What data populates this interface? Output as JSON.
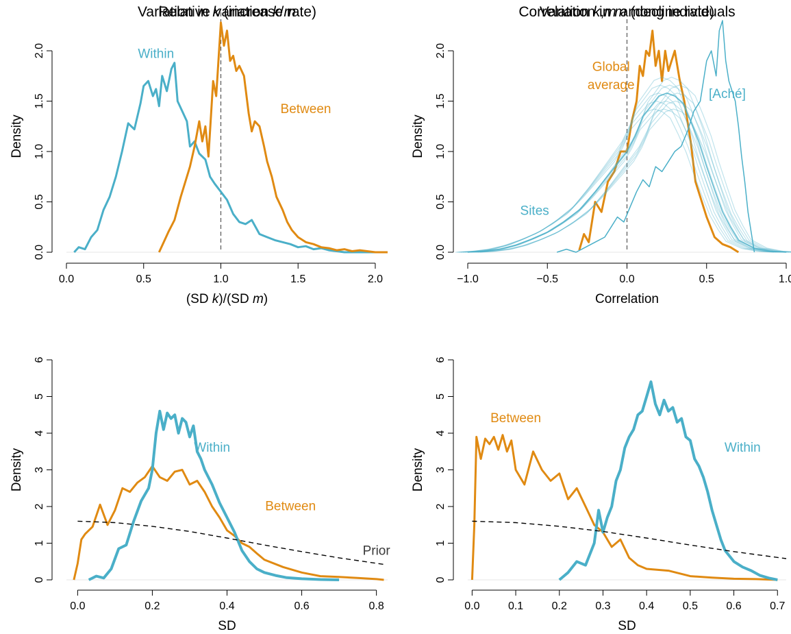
{
  "colors": {
    "within": "#4AAFC8",
    "between": "#E08A12",
    "prior": "#000000",
    "axis": "#000000",
    "text_dark": "#3a3a3a"
  },
  "chart_data": [
    {
      "type": "line",
      "title_parts": [
        "Relative variation ",
        "k",
        "/",
        "m"
      ],
      "xlabel_parts": [
        "(SD ",
        "k",
        ")/(SD ",
        "m",
        ")"
      ],
      "ylabel": "Density",
      "xlim": [
        0,
        2.08
      ],
      "ylim": [
        0,
        2.3
      ],
      "xticks": [
        "0.0",
        "0.5",
        "1.0",
        "1.5",
        "2.0"
      ],
      "xtick_values": [
        0,
        0.5,
        1.0,
        1.5,
        2.0
      ],
      "yticks": [
        "0.0",
        "0.5",
        "1.0",
        "1.5",
        "2.0"
      ],
      "ytick_values": [
        0,
        0.5,
        1.0,
        1.5,
        2.0
      ],
      "vline": 1.0,
      "annotations": [
        {
          "text": "Within",
          "x": 0.58,
          "y": 1.93,
          "color": "within"
        },
        {
          "text": "Between",
          "x": 1.55,
          "y": 1.38,
          "color": "between"
        }
      ],
      "series": [
        {
          "name": "Within",
          "color": "within",
          "x": [
            0.05,
            0.08,
            0.12,
            0.16,
            0.2,
            0.24,
            0.28,
            0.32,
            0.36,
            0.4,
            0.44,
            0.48,
            0.5,
            0.53,
            0.56,
            0.58,
            0.6,
            0.62,
            0.65,
            0.68,
            0.7,
            0.72,
            0.75,
            0.78,
            0.8,
            0.83,
            0.86,
            0.9,
            0.93,
            0.96,
            1.0,
            1.04,
            1.08,
            1.12,
            1.16,
            1.2,
            1.25,
            1.3,
            1.35,
            1.4,
            1.45,
            1.5,
            1.55,
            1.6,
            1.65,
            1.7,
            1.75,
            1.8,
            1.9,
            2.0,
            2.08
          ],
          "y": [
            0,
            0.05,
            0.03,
            0.15,
            0.22,
            0.42,
            0.55,
            0.75,
            1.0,
            1.28,
            1.22,
            1.48,
            1.65,
            1.7,
            1.55,
            1.62,
            1.45,
            1.75,
            1.6,
            1.82,
            1.88,
            1.5,
            1.4,
            1.3,
            1.05,
            1.1,
            0.98,
            0.92,
            0.75,
            0.68,
            0.6,
            0.52,
            0.38,
            0.3,
            0.28,
            0.32,
            0.18,
            0.15,
            0.12,
            0.1,
            0.08,
            0.05,
            0.06,
            0.03,
            0.04,
            0.02,
            0.01,
            0.0,
            0.0,
            0.0,
            0.0
          ]
        },
        {
          "name": "Between",
          "color": "between",
          "x": [
            0.6,
            0.63,
            0.66,
            0.7,
            0.74,
            0.78,
            0.8,
            0.83,
            0.86,
            0.88,
            0.9,
            0.92,
            0.95,
            0.97,
            1.0,
            1.02,
            1.04,
            1.06,
            1.08,
            1.1,
            1.12,
            1.15,
            1.18,
            1.2,
            1.22,
            1.25,
            1.28,
            1.3,
            1.33,
            1.36,
            1.4,
            1.43,
            1.46,
            1.5,
            1.55,
            1.6,
            1.65,
            1.7,
            1.75,
            1.8,
            1.85,
            1.9,
            2.0,
            2.08
          ],
          "y": [
            0,
            0.1,
            0.2,
            0.32,
            0.55,
            0.75,
            0.85,
            1.05,
            1.3,
            1.1,
            1.25,
            0.95,
            1.7,
            1.55,
            2.28,
            2.05,
            2.2,
            1.9,
            1.95,
            1.8,
            1.85,
            1.75,
            1.38,
            1.2,
            1.3,
            1.25,
            1.05,
            0.9,
            0.75,
            0.55,
            0.42,
            0.3,
            0.22,
            0.15,
            0.1,
            0.08,
            0.05,
            0.04,
            0.02,
            0.03,
            0.01,
            0.02,
            0.0,
            0.0
          ]
        }
      ]
    },
    {
      "type": "line",
      "title_parts": [
        "Correlation ",
        "k",
        ",",
        "m",
        " among individuals"
      ],
      "xlabel": "Correlation",
      "ylabel": "Density",
      "xlim": [
        -1.0,
        1.0
      ],
      "ylim": [
        0,
        2.3
      ],
      "xticks": [
        "−1.0",
        "−0.5",
        "0.0",
        "0.5",
        "1.0"
      ],
      "xtick_values": [
        -1.0,
        -0.5,
        0.0,
        0.5,
        1.0
      ],
      "yticks": [
        "0.0",
        "0.5",
        "1.0",
        "1.5",
        "2.0"
      ],
      "ytick_values": [
        0,
        0.5,
        1.0,
        1.5,
        2.0
      ],
      "vline": 0.0,
      "annotations": [
        {
          "text": "Global",
          "x": -0.1,
          "y": 1.8,
          "color": "between"
        },
        {
          "text": "average",
          "x": -0.1,
          "y": 1.62,
          "color": "between"
        },
        {
          "text": "[Aché]",
          "x": 0.63,
          "y": 1.53,
          "color": "within"
        },
        {
          "text": "Sites",
          "x": -0.58,
          "y": 0.37,
          "color": "within"
        }
      ],
      "series": [
        {
          "name": "Global average",
          "color": "between",
          "x": [
            -0.3,
            -0.27,
            -0.24,
            -0.2,
            -0.16,
            -0.12,
            -0.08,
            -0.04,
            0.0,
            0.03,
            0.06,
            0.08,
            0.1,
            0.12,
            0.14,
            0.16,
            0.18,
            0.2,
            0.22,
            0.24,
            0.26,
            0.28,
            0.3,
            0.33,
            0.36,
            0.4,
            0.43,
            0.46,
            0.5,
            0.55,
            0.6,
            0.65,
            0.7
          ],
          "y": [
            0.02,
            0.18,
            0.1,
            0.5,
            0.4,
            0.7,
            0.8,
            1.0,
            1.0,
            1.3,
            1.5,
            1.85,
            1.75,
            2.0,
            1.95,
            2.2,
            1.85,
            2.0,
            1.7,
            2.0,
            1.8,
            1.9,
            2.0,
            1.72,
            1.5,
            1.1,
            0.7,
            0.55,
            0.35,
            0.15,
            0.08,
            0.05,
            0.0
          ]
        },
        {
          "name": "[Aché]",
          "color": "within",
          "x": [
            -0.44,
            -0.38,
            -0.32,
            -0.26,
            -0.2,
            -0.14,
            -0.1,
            -0.06,
            -0.02,
            0.02,
            0.06,
            0.1,
            0.14,
            0.18,
            0.22,
            0.26,
            0.3,
            0.34,
            0.38,
            0.42,
            0.46,
            0.5,
            0.53,
            0.56,
            0.58,
            0.6,
            0.62,
            0.64,
            0.66,
            0.68,
            0.7,
            0.72,
            0.74,
            0.76,
            0.8
          ],
          "y": [
            0.0,
            0.03,
            0.0,
            0.05,
            0.1,
            0.15,
            0.25,
            0.35,
            0.3,
            0.45,
            0.6,
            0.72,
            0.65,
            0.85,
            0.8,
            0.9,
            1.0,
            1.05,
            1.2,
            1.4,
            1.5,
            1.9,
            2.0,
            1.75,
            2.2,
            2.3,
            1.9,
            1.7,
            1.6,
            1.5,
            1.25,
            0.95,
            0.7,
            0.4,
            0.0
          ]
        },
        {
          "name": "Sites",
          "color": "within",
          "band": true,
          "x": [
            -1.0,
            -0.9,
            -0.8,
            -0.7,
            -0.6,
            -0.5,
            -0.4,
            -0.3,
            -0.2,
            -0.1,
            0.0,
            0.05,
            0.1,
            0.15,
            0.2,
            0.25,
            0.3,
            0.35,
            0.4,
            0.45,
            0.5,
            0.55,
            0.6,
            0.65,
            0.7,
            0.8,
            0.9,
            1.0
          ],
          "y": [
            0.0,
            0.01,
            0.03,
            0.07,
            0.13,
            0.2,
            0.3,
            0.42,
            0.6,
            0.8,
            1.0,
            1.15,
            1.35,
            1.45,
            1.55,
            1.58,
            1.55,
            1.48,
            1.3,
            1.1,
            0.85,
            0.62,
            0.4,
            0.25,
            0.12,
            0.04,
            0.01,
            0.0
          ]
        }
      ]
    },
    {
      "type": "line",
      "title_parts": [
        "Variation in ",
        "k",
        " (increase rate)"
      ],
      "xlabel": "SD",
      "ylabel": "Density",
      "xlim": [
        -0.03,
        0.83
      ],
      "ylim": [
        0,
        6
      ],
      "xticks": [
        "0.0",
        "0.2",
        "0.4",
        "0.6",
        "0.8"
      ],
      "xtick_values": [
        0,
        0.2,
        0.4,
        0.6,
        0.8
      ],
      "yticks": [
        "0",
        "1",
        "2",
        "3",
        "4",
        "5",
        "6"
      ],
      "ytick_values": [
        0,
        1,
        2,
        3,
        4,
        5,
        6
      ],
      "annotations": [
        {
          "text": "Within",
          "x": 0.36,
          "y": 3.5,
          "color": "within"
        },
        {
          "text": "Between",
          "x": 0.57,
          "y": 1.9,
          "color": "between"
        },
        {
          "text": "Prior",
          "x": 0.8,
          "y": 0.68,
          "color": "text_dark"
        }
      ],
      "series": [
        {
          "name": "Between",
          "color": "between",
          "x": [
            -0.01,
            0.0,
            0.01,
            0.02,
            0.04,
            0.06,
            0.08,
            0.1,
            0.12,
            0.14,
            0.16,
            0.18,
            0.2,
            0.22,
            0.24,
            0.26,
            0.28,
            0.3,
            0.32,
            0.34,
            0.36,
            0.38,
            0.4,
            0.42,
            0.44,
            0.46,
            0.48,
            0.5,
            0.55,
            0.6,
            0.65,
            0.7,
            0.75,
            0.8,
            0.82
          ],
          "y": [
            0,
            0.45,
            1.1,
            1.25,
            1.45,
            2.05,
            1.5,
            1.9,
            2.5,
            2.4,
            2.65,
            2.8,
            3.1,
            2.8,
            2.7,
            2.95,
            3.0,
            2.6,
            2.7,
            2.4,
            2.0,
            1.7,
            1.35,
            1.2,
            1.0,
            0.9,
            0.72,
            0.55,
            0.35,
            0.2,
            0.1,
            0.08,
            0.05,
            0.02,
            0.0
          ]
        },
        {
          "name": "Within",
          "color": "within",
          "x": [
            0.03,
            0.05,
            0.07,
            0.09,
            0.11,
            0.13,
            0.15,
            0.17,
            0.19,
            0.2,
            0.21,
            0.22,
            0.23,
            0.24,
            0.25,
            0.26,
            0.27,
            0.28,
            0.29,
            0.3,
            0.31,
            0.32,
            0.33,
            0.34,
            0.36,
            0.38,
            0.4,
            0.42,
            0.44,
            0.46,
            0.48,
            0.5,
            0.53,
            0.56,
            0.6,
            0.65,
            0.7
          ],
          "y": [
            0.0,
            0.1,
            0.05,
            0.3,
            0.85,
            0.95,
            1.6,
            2.15,
            2.5,
            3.0,
            4.0,
            4.6,
            4.1,
            4.55,
            4.4,
            4.5,
            4.0,
            4.4,
            4.3,
            3.9,
            4.2,
            3.5,
            3.3,
            3.0,
            2.6,
            2.1,
            1.7,
            1.3,
            0.8,
            0.5,
            0.3,
            0.2,
            0.12,
            0.06,
            0.03,
            0.01,
            0.0
          ]
        },
        {
          "name": "Prior",
          "color": "prior",
          "dashed": true,
          "x": [
            0.0,
            0.1,
            0.2,
            0.3,
            0.4,
            0.5,
            0.6,
            0.7,
            0.82
          ],
          "y": [
            1.6,
            1.56,
            1.46,
            1.32,
            1.14,
            0.95,
            0.77,
            0.6,
            0.42
          ]
        }
      ]
    },
    {
      "type": "line",
      "title_parts": [
        "Variation in ",
        "m",
        " (decline rate)"
      ],
      "xlabel": "SD",
      "ylabel": "Density",
      "xlim": [
        -0.01,
        0.72
      ],
      "ylim": [
        0,
        6
      ],
      "xticks": [
        "0.0",
        "0.1",
        "0.2",
        "0.3",
        "0.4",
        "0.5",
        "0.6",
        "0.7"
      ],
      "xtick_values": [
        0,
        0.1,
        0.2,
        0.3,
        0.4,
        0.5,
        0.6,
        0.7
      ],
      "yticks": [
        "0",
        "1",
        "2",
        "3",
        "4",
        "5",
        "6"
      ],
      "ytick_values": [
        0,
        1,
        2,
        3,
        4,
        5,
        6
      ],
      "annotations": [
        {
          "text": "Between",
          "x": 0.1,
          "y": 4.3,
          "color": "between"
        },
        {
          "text": "Within",
          "x": 0.62,
          "y": 3.5,
          "color": "within"
        }
      ],
      "series": [
        {
          "name": "Between",
          "color": "between",
          "x": [
            0.0,
            0.005,
            0.01,
            0.02,
            0.03,
            0.04,
            0.05,
            0.06,
            0.07,
            0.08,
            0.09,
            0.1,
            0.12,
            0.14,
            0.16,
            0.18,
            0.2,
            0.22,
            0.24,
            0.26,
            0.28,
            0.3,
            0.32,
            0.34,
            0.36,
            0.38,
            0.4,
            0.45,
            0.5,
            0.55,
            0.6,
            0.65,
            0.7
          ],
          "y": [
            0.0,
            1.5,
            3.9,
            3.3,
            3.85,
            3.7,
            3.9,
            3.55,
            3.95,
            3.5,
            3.8,
            3.0,
            2.6,
            3.5,
            3.0,
            2.7,
            2.9,
            2.2,
            2.5,
            2.0,
            1.5,
            1.3,
            0.9,
            1.1,
            0.6,
            0.4,
            0.3,
            0.25,
            0.1,
            0.06,
            0.03,
            0.02,
            0.0
          ]
        },
        {
          "name": "Within",
          "color": "within",
          "x": [
            0.2,
            0.22,
            0.24,
            0.26,
            0.28,
            0.29,
            0.3,
            0.31,
            0.32,
            0.33,
            0.34,
            0.35,
            0.36,
            0.37,
            0.38,
            0.39,
            0.4,
            0.41,
            0.42,
            0.43,
            0.44,
            0.45,
            0.46,
            0.47,
            0.48,
            0.49,
            0.5,
            0.51,
            0.52,
            0.53,
            0.54,
            0.55,
            0.56,
            0.57,
            0.58,
            0.6,
            0.62,
            0.64,
            0.66,
            0.68,
            0.7
          ],
          "y": [
            0.0,
            0.2,
            0.5,
            0.4,
            1.0,
            1.9,
            1.3,
            1.7,
            2.0,
            2.7,
            3.0,
            3.6,
            3.9,
            4.1,
            4.5,
            4.6,
            5.0,
            5.4,
            4.8,
            4.5,
            4.9,
            4.6,
            4.7,
            4.3,
            4.4,
            3.9,
            3.8,
            3.3,
            3.1,
            2.8,
            2.4,
            1.9,
            1.5,
            1.1,
            0.8,
            0.5,
            0.35,
            0.25,
            0.12,
            0.05,
            0.0
          ]
        },
        {
          "name": "Prior",
          "color": "prior",
          "dashed": true,
          "x": [
            0.0,
            0.1,
            0.2,
            0.3,
            0.4,
            0.5,
            0.6,
            0.72
          ],
          "y": [
            1.6,
            1.56,
            1.46,
            1.32,
            1.14,
            0.95,
            0.77,
            0.58
          ]
        }
      ]
    }
  ]
}
